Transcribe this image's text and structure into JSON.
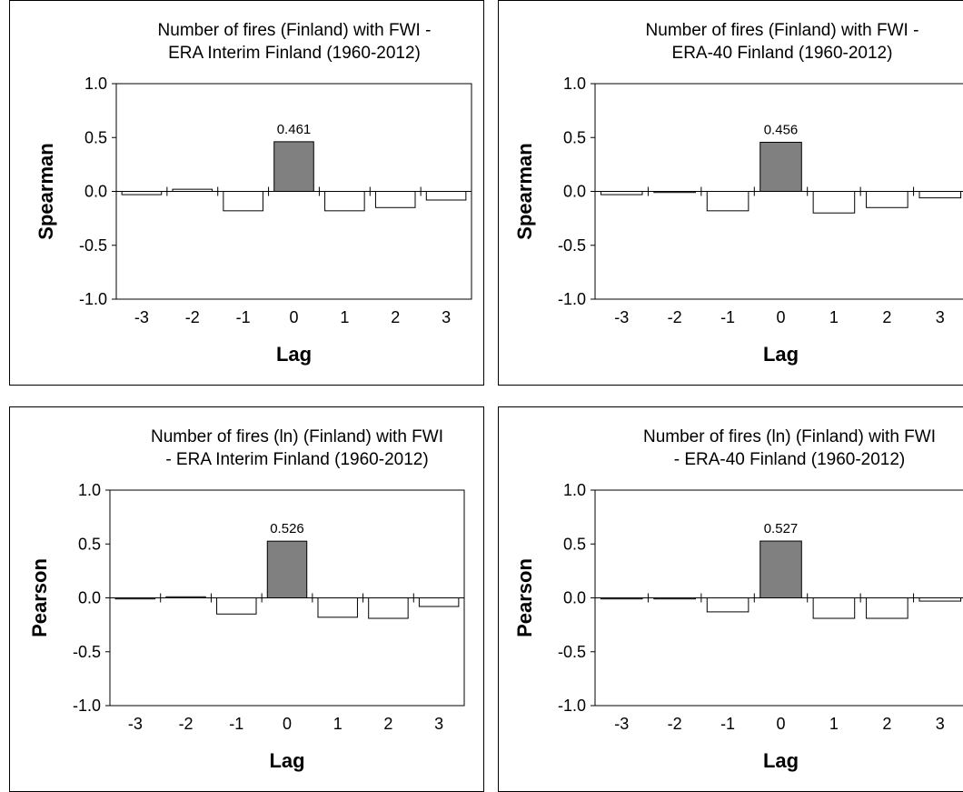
{
  "chart_data": [
    {
      "type": "bar",
      "title": [
        "Number of fires (Finland)  with FWI -",
        "ERA Interim Finland  (1960-2012)"
      ],
      "xlabel": "Lag",
      "ylabel": "Spearman",
      "categories": [
        "-3",
        "-2",
        "-1",
        "0",
        "1",
        "2",
        "3"
      ],
      "values": [
        -0.03,
        0.02,
        -0.18,
        0.461,
        -0.18,
        -0.15,
        -0.08
      ],
      "data_labels": [
        "",
        "",
        "",
        "0.461",
        "",
        "",
        ""
      ],
      "yticks": [
        "1.0",
        "0.5",
        "0.0",
        "-0.5",
        "-1.0"
      ],
      "ylim": [
        -1.0,
        1.0
      ],
      "highlight_index": 3,
      "colors": {
        "highlight": "#808080",
        "bar": "#ffffff",
        "stroke": "#000000"
      }
    },
    {
      "type": "bar",
      "title": [
        "Number of fires (Finland)  with FWI -",
        "ERA-40 Finland  (1960-2012)"
      ],
      "xlabel": "Lag",
      "ylabel": "Spearman",
      "categories": [
        "-3",
        "-2",
        "-1",
        "0",
        "1",
        "2",
        "3"
      ],
      "values": [
        -0.03,
        -0.01,
        -0.18,
        0.456,
        -0.2,
        -0.15,
        -0.06
      ],
      "data_labels": [
        "",
        "",
        "",
        "0.456",
        "",
        "",
        ""
      ],
      "yticks": [
        "1.0",
        "0.5",
        "0.0",
        "-0.5",
        "-1.0"
      ],
      "ylim": [
        -1.0,
        1.0
      ],
      "highlight_index": 3,
      "colors": {
        "highlight": "#808080",
        "bar": "#ffffff",
        "stroke": "#000000"
      }
    },
    {
      "type": "bar",
      "title": [
        "Number of fires (ln) (Finland)  with FWI",
        "- ERA Interim Finland  (1960-2012)"
      ],
      "xlabel": "Lag",
      "ylabel": "Pearson",
      "categories": [
        "-3",
        "-2",
        "-1",
        "0",
        "1",
        "2",
        "3"
      ],
      "values": [
        -0.01,
        0.01,
        -0.15,
        0.526,
        -0.18,
        -0.19,
        -0.08
      ],
      "data_labels": [
        "",
        "",
        "",
        "0.526",
        "",
        "",
        ""
      ],
      "yticks": [
        "1.0",
        "0.5",
        "0.0",
        "-0.5",
        "-1.0"
      ],
      "ylim": [
        -1.0,
        1.0
      ],
      "highlight_index": 3,
      "colors": {
        "highlight": "#808080",
        "bar": "#ffffff",
        "stroke": "#000000"
      }
    },
    {
      "type": "bar",
      "title": [
        "Number of fires (ln) (Finland)  with FWI",
        "- ERA-40 Finland  (1960-2012)"
      ],
      "xlabel": "Lag",
      "ylabel": "Pearson",
      "categories": [
        "-3",
        "-2",
        "-1",
        "0",
        "1",
        "2",
        "3"
      ],
      "values": [
        -0.01,
        -0.01,
        -0.13,
        0.527,
        -0.19,
        -0.19,
        -0.03
      ],
      "data_labels": [
        "",
        "",
        "",
        "0.527",
        "",
        "",
        ""
      ],
      "yticks": [
        "1.0",
        "0.5",
        "0.0",
        "-0.5",
        "-1.0"
      ],
      "ylim": [
        -1.0,
        1.0
      ],
      "highlight_index": 3,
      "colors": {
        "highlight": "#808080",
        "bar": "#ffffff",
        "stroke": "#000000"
      }
    }
  ]
}
